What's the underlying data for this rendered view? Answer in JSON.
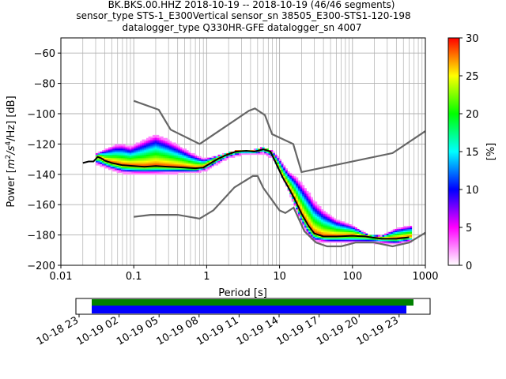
{
  "chart_data": {
    "type": "heatmap",
    "title_lines": [
      "BK.BKS.00.HHZ   2018-10-19 -- 2018-10-19  (46/46 segments)",
      "sensor_type STS-1_E300Vertical sensor_sn 38505_E300-STS1-120-198",
      "datalogger_type Q330HR-GFE datalogger_sn 4007"
    ],
    "xlabel": "Period [s]",
    "ylabel": "Power [m²/s⁴/Hz] [dB]",
    "ylabel_parts": {
      "main": "Power [",
      "m": "m",
      "two": "2",
      "s": "/s",
      "four": "4",
      "rest": "/Hz] [dB]"
    },
    "xscale": "log",
    "xlim": [
      0.01,
      1000
    ],
    "ylim": [
      -200,
      -50
    ],
    "xticks": [
      {
        "value": 0.01,
        "label": "0.01"
      },
      {
        "value": 0.1,
        "label": "0.1"
      },
      {
        "value": 1,
        "label": "1"
      },
      {
        "value": 10,
        "label": "10"
      },
      {
        "value": 100,
        "label": "100"
      },
      {
        "value": 1000,
        "label": "1000"
      }
    ],
    "yticks": [
      {
        "value": -60,
        "label": "−60"
      },
      {
        "value": -80,
        "label": "−80"
      },
      {
        "value": -100,
        "label": "−100"
      },
      {
        "value": -120,
        "label": "−120"
      },
      {
        "value": -140,
        "label": "−140"
      },
      {
        "value": -160,
        "label": "−160"
      },
      {
        "value": -180,
        "label": "−180"
      },
      {
        "value": -200,
        "label": "−200"
      }
    ],
    "grid": true,
    "noise_models": {
      "color": "#666666",
      "nhnm": [
        [
          0.1,
          -91.5
        ],
        [
          0.22,
          -97.4
        ],
        [
          0.32,
          -110.5
        ],
        [
          0.8,
          -120
        ],
        [
          3.8,
          -98
        ],
        [
          4.6,
          -96.5
        ],
        [
          6.3,
          -101
        ],
        [
          7.9,
          -113.5
        ],
        [
          15.4,
          -120
        ],
        [
          20,
          -138.5
        ],
        [
          354.8,
          -126
        ],
        [
          1000,
          -111.5
        ]
      ],
      "nlnm": [
        [
          0.1,
          -168
        ],
        [
          0.17,
          -166.7
        ],
        [
          0.4,
          -166.7
        ],
        [
          0.8,
          -169.2
        ],
        [
          1.24,
          -163.7
        ],
        [
          2.4,
          -148.6
        ],
        [
          4.3,
          -141.1
        ],
        [
          5.0,
          -141.1
        ],
        [
          6.0,
          -149
        ],
        [
          10.0,
          -163.8
        ],
        [
          12.0,
          -165.5
        ],
        [
          15.6,
          -162
        ],
        [
          21.9,
          -177.5
        ],
        [
          31.6,
          -185
        ],
        [
          45,
          -187.5
        ],
        [
          70,
          -187.5
        ],
        [
          110,
          -185
        ],
        [
          200,
          -185
        ],
        [
          354.8,
          -187.5
        ],
        [
          600,
          -185
        ],
        [
          1000,
          -178.5
        ]
      ]
    },
    "mode_curve": {
      "color": "#000000",
      "points": [
        [
          0.02,
          -132.5
        ],
        [
          0.024,
          -131.5
        ],
        [
          0.028,
          -131.5
        ],
        [
          0.032,
          -128.5
        ],
        [
          0.036,
          -129.5
        ],
        [
          0.04,
          -131
        ],
        [
          0.05,
          -132.5
        ],
        [
          0.07,
          -134
        ],
        [
          0.1,
          -134.5
        ],
        [
          0.14,
          -135
        ],
        [
          0.2,
          -134.5
        ],
        [
          0.3,
          -135
        ],
        [
          0.5,
          -135.5
        ],
        [
          0.7,
          -136
        ],
        [
          0.9,
          -135.5
        ],
        [
          1.1,
          -133
        ],
        [
          1.4,
          -130
        ],
        [
          1.8,
          -127.5
        ],
        [
          2.5,
          -125
        ],
        [
          3.5,
          -124.5
        ],
        [
          4.5,
          -125
        ],
        [
          6.0,
          -123.5
        ],
        [
          7.5,
          -125
        ],
        [
          9.0,
          -133
        ],
        [
          11.0,
          -142
        ],
        [
          13.0,
          -148
        ],
        [
          16.0,
          -156
        ],
        [
          20.0,
          -166
        ],
        [
          25.0,
          -174
        ],
        [
          30.0,
          -179
        ],
        [
          40.0,
          -181
        ],
        [
          60.0,
          -181
        ],
        [
          100.0,
          -180.5
        ],
        [
          150.0,
          -181
        ],
        [
          250.0,
          -182.5
        ],
        [
          400.0,
          -182.5
        ],
        [
          600.0,
          -181.5
        ]
      ]
    },
    "density_band": {
      "upper": [
        [
          0.03,
          -127
        ],
        [
          0.04,
          -124
        ],
        [
          0.055,
          -121
        ],
        [
          0.07,
          -120.5
        ],
        [
          0.09,
          -122
        ],
        [
          0.12,
          -119
        ],
        [
          0.16,
          -116
        ],
        [
          0.2,
          -114
        ],
        [
          0.28,
          -117
        ],
        [
          0.4,
          -121
        ],
        [
          0.6,
          -126
        ],
        [
          0.9,
          -130
        ],
        [
          1.2,
          -129
        ],
        [
          1.8,
          -126.5
        ],
        [
          2.5,
          -125
        ],
        [
          4.5,
          -124
        ],
        [
          6.0,
          -122.5
        ],
        [
          8.0,
          -125
        ],
        [
          10.0,
          -130
        ],
        [
          13.0,
          -138
        ],
        [
          16.0,
          -141
        ],
        [
          20.0,
          -146
        ],
        [
          25.0,
          -152
        ],
        [
          30.0,
          -158
        ],
        [
          40.0,
          -164
        ],
        [
          60.0,
          -170
        ],
        [
          100.0,
          -174
        ],
        [
          160.0,
          -180
        ],
        [
          250.0,
          -181
        ],
        [
          400.0,
          -176
        ],
        [
          650.0,
          -174
        ]
      ],
      "lower": [
        [
          0.03,
          -133
        ],
        [
          0.05,
          -137
        ],
        [
          0.07,
          -139
        ],
        [
          0.1,
          -139.5
        ],
        [
          0.2,
          -139.5
        ],
        [
          0.4,
          -139
        ],
        [
          0.7,
          -139
        ],
        [
          1.0,
          -137
        ],
        [
          1.4,
          -133
        ],
        [
          2.0,
          -129
        ],
        [
          3.0,
          -127
        ],
        [
          4.5,
          -127
        ],
        [
          6.0,
          -126
        ],
        [
          8.0,
          -129
        ],
        [
          10.0,
          -137
        ],
        [
          13.0,
          -150
        ],
        [
          16.0,
          -160
        ],
        [
          20.0,
          -172
        ],
        [
          25.0,
          -180
        ],
        [
          30.0,
          -184
        ],
        [
          50.0,
          -185
        ],
        [
          100.0,
          -185
        ],
        [
          200.0,
          -185
        ],
        [
          400.0,
          -186
        ],
        [
          650.0,
          -184
        ]
      ]
    },
    "colorbar": {
      "label": "[%]",
      "range": [
        0,
        30
      ],
      "ticks": [
        {
          "value": 0,
          "label": "0"
        },
        {
          "value": 5,
          "label": "5"
        },
        {
          "value": 10,
          "label": "10"
        },
        {
          "value": 15,
          "label": "15"
        },
        {
          "value": 20,
          "label": "20"
        },
        {
          "value": 25,
          "label": "25"
        },
        {
          "value": 30,
          "label": "30"
        }
      ],
      "colors": [
        "#ffffff",
        "#ff00ff",
        "#0000ff",
        "#00ffff",
        "#00ff00",
        "#ffff00",
        "#ff0000"
      ]
    },
    "timeline": {
      "color_green": "#008000",
      "color_blue": "#0000ff",
      "date_ticks": [
        "10-18 23",
        "10-19 02",
        "10-19 05",
        "10-19 08",
        "10-19 11",
        "10-19 14",
        "10-19 17",
        "10-19 20",
        "10-19 23"
      ]
    }
  }
}
